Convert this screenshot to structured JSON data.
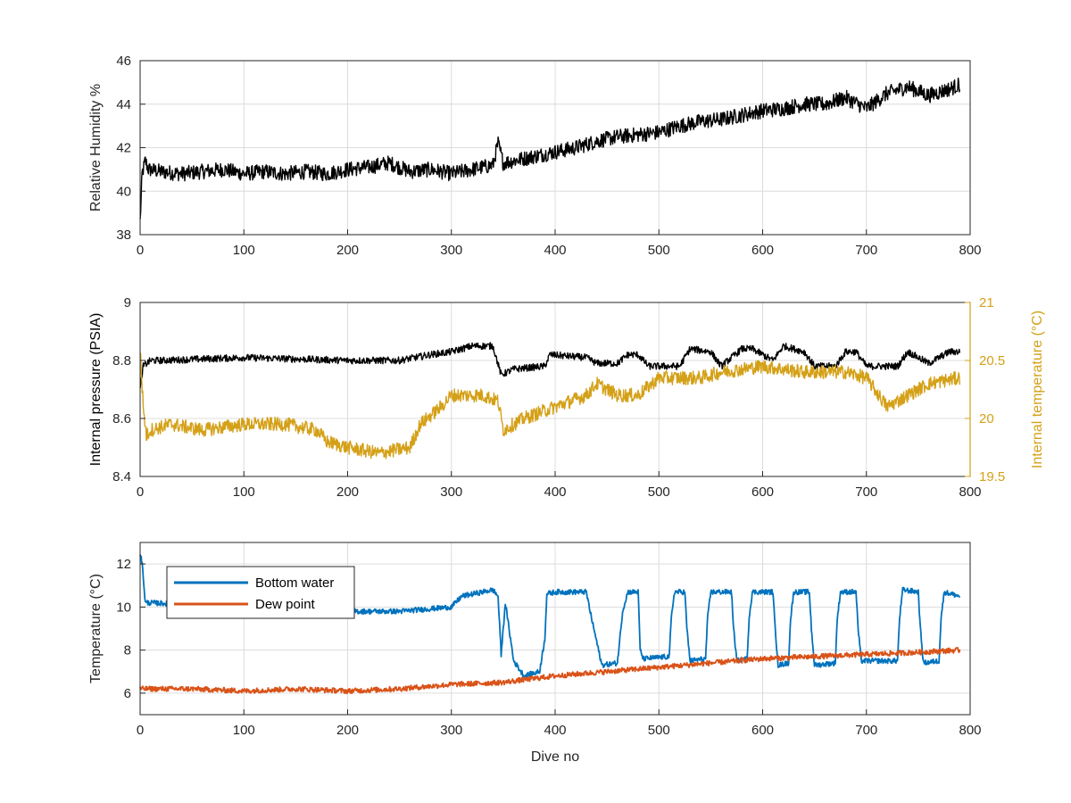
{
  "colors": {
    "background": "#ffffff",
    "axis": "#262626",
    "grid": "#dcdcdc",
    "black": "#000000",
    "orange_axis": "#d4a017",
    "blue": "#0072bd",
    "red": "#d95319"
  },
  "chart_data": [
    {
      "type": "line",
      "xlabel": "",
      "ylabel": "Relative Humidity %",
      "xlim": [
        0,
        800
      ],
      "ylim": [
        38,
        46
      ],
      "xticks": [
        "0",
        "100",
        "200",
        "300",
        "400",
        "500",
        "600",
        "700",
        "800"
      ],
      "yticks": [
        "38",
        "40",
        "42",
        "44",
        "46"
      ],
      "grid": true,
      "series": [
        {
          "color": "#000000",
          "x": [
            0,
            2,
            5,
            8,
            20,
            40,
            60,
            80,
            100,
            120,
            140,
            160,
            180,
            200,
            220,
            240,
            260,
            280,
            300,
            320,
            340,
            345,
            350,
            360,
            380,
            400,
            420,
            440,
            460,
            480,
            500,
            520,
            540,
            560,
            580,
            600,
            620,
            640,
            660,
            680,
            700,
            720,
            740,
            760,
            780,
            790
          ],
          "y": [
            38.6,
            40.8,
            41.4,
            41.0,
            40.9,
            40.8,
            40.9,
            41.0,
            40.8,
            40.9,
            40.8,
            40.9,
            40.8,
            41.0,
            41.1,
            41.3,
            40.9,
            41.0,
            40.8,
            41.0,
            41.2,
            42.2,
            41.3,
            41.4,
            41.6,
            41.8,
            42.0,
            42.3,
            42.5,
            42.6,
            42.7,
            43.0,
            43.2,
            43.3,
            43.5,
            43.7,
            43.8,
            44.0,
            44.0,
            44.3,
            43.8,
            44.5,
            44.8,
            44.4,
            44.7,
            44.9
          ],
          "amp": 0.35
        }
      ]
    },
    {
      "type": "line",
      "xlabel": "",
      "ylabel": "Internal pressure (PSIA)",
      "y2label": "Internal temperature (°C)",
      "xlim": [
        0,
        800
      ],
      "ylim": [
        8.4,
        9
      ],
      "y2lim": [
        19.5,
        21
      ],
      "xticks": [
        "0",
        "100",
        "200",
        "300",
        "400",
        "500",
        "600",
        "700",
        "800"
      ],
      "yticks": [
        "8.4",
        "8.6",
        "8.8",
        "9"
      ],
      "y2ticks": [
        "19.5",
        "20",
        "20.5",
        "21"
      ],
      "grid": true,
      "series": [
        {
          "name": "pressure",
          "axis": "left",
          "color": "#000000",
          "x": [
            0,
            3,
            10,
            20,
            100,
            200,
            250,
            280,
            300,
            320,
            340,
            348,
            360,
            390,
            395,
            430,
            440,
            460,
            470,
            480,
            490,
            520,
            530,
            550,
            560,
            580,
            590,
            610,
            620,
            640,
            650,
            670,
            680,
            690,
            700,
            730,
            740,
            760,
            780,
            790
          ],
          "y": [
            8.7,
            8.78,
            8.8,
            8.8,
            8.81,
            8.8,
            8.8,
            8.82,
            8.83,
            8.85,
            8.85,
            8.75,
            8.77,
            8.78,
            8.82,
            8.81,
            8.79,
            8.79,
            8.82,
            8.82,
            8.78,
            8.78,
            8.84,
            8.83,
            8.78,
            8.84,
            8.84,
            8.8,
            8.85,
            8.83,
            8.78,
            8.78,
            8.83,
            8.83,
            8.78,
            8.78,
            8.83,
            8.79,
            8.83,
            8.83
          ],
          "amp": 0.012
        },
        {
          "name": "temperature",
          "axis": "right",
          "color": "#d4a017",
          "x": [
            0,
            3,
            6,
            10,
            30,
            60,
            100,
            140,
            170,
            180,
            200,
            230,
            260,
            270,
            290,
            300,
            330,
            345,
            350,
            370,
            400,
            430,
            440,
            460,
            480,
            500,
            540,
            560,
            600,
            640,
            680,
            700,
            720,
            740,
            760,
            790
          ],
          "y": [
            20.6,
            20.1,
            19.85,
            19.9,
            19.95,
            19.9,
            19.95,
            19.95,
            19.9,
            19.8,
            19.75,
            19.7,
            19.75,
            19.95,
            20.1,
            20.2,
            20.2,
            20.15,
            19.9,
            20.0,
            20.1,
            20.2,
            20.3,
            20.2,
            20.2,
            20.35,
            20.35,
            20.4,
            20.45,
            20.4,
            20.4,
            20.35,
            20.1,
            20.2,
            20.3,
            20.35
          ],
          "amp": 0.06
        }
      ]
    },
    {
      "type": "line",
      "xlabel": "Dive no",
      "ylabel": "Temperature (°C)",
      "xlim": [
        0,
        800
      ],
      "ylim": [
        5,
        13
      ],
      "xticks": [
        "0",
        "100",
        "200",
        "300",
        "400",
        "500",
        "600",
        "700",
        "800"
      ],
      "yticks": [
        "6",
        "8",
        "10",
        "12"
      ],
      "grid": true,
      "legend": "top-left",
      "series": [
        {
          "name": "Bottom water",
          "color": "#0072bd",
          "x": [
            0,
            2,
            5,
            10,
            50,
            100,
            200,
            250,
            300,
            310,
            340,
            345,
            348,
            352,
            360,
            370,
            385,
            390,
            392,
            400,
            430,
            435,
            445,
            460,
            465,
            470,
            480,
            482,
            485,
            510,
            512,
            515,
            525,
            527,
            530,
            545,
            547,
            550,
            570,
            572,
            575,
            585,
            587,
            590,
            610,
            612,
            615,
            625,
            627,
            630,
            645,
            647,
            650,
            670,
            672,
            675,
            690,
            692,
            695,
            730,
            732,
            735,
            750,
            752,
            755,
            770,
            772,
            775,
            790
          ],
          "y": [
            12.5,
            12.0,
            10.2,
            10.2,
            10.1,
            10.0,
            9.8,
            9.8,
            10.0,
            10.5,
            10.8,
            10.5,
            7.8,
            10.2,
            7.5,
            6.8,
            7.0,
            8.5,
            10.6,
            10.7,
            10.7,
            9.5,
            7.3,
            7.4,
            9.8,
            10.7,
            10.7,
            8.0,
            7.6,
            7.7,
            9.5,
            10.7,
            10.7,
            9.0,
            7.5,
            7.6,
            9.5,
            10.7,
            10.7,
            9.0,
            7.5,
            7.6,
            9.5,
            10.7,
            10.7,
            9.0,
            7.3,
            7.4,
            9.5,
            10.7,
            10.7,
            9.0,
            7.3,
            7.4,
            9.5,
            10.7,
            10.7,
            9.0,
            7.5,
            7.5,
            9.5,
            10.8,
            10.7,
            9.0,
            7.4,
            7.5,
            9.5,
            10.7,
            10.5
          ],
          "amp": 0.12
        },
        {
          "name": "Dew point",
          "color": "#d95319",
          "x": [
            0,
            50,
            100,
            150,
            200,
            250,
            300,
            350,
            400,
            450,
            500,
            550,
            600,
            650,
            700,
            750,
            790
          ],
          "y": [
            6.2,
            6.2,
            6.1,
            6.2,
            6.1,
            6.2,
            6.4,
            6.5,
            6.8,
            7.0,
            7.2,
            7.4,
            7.6,
            7.7,
            7.8,
            7.9,
            8.0
          ],
          "amp": 0.12
        }
      ]
    }
  ]
}
